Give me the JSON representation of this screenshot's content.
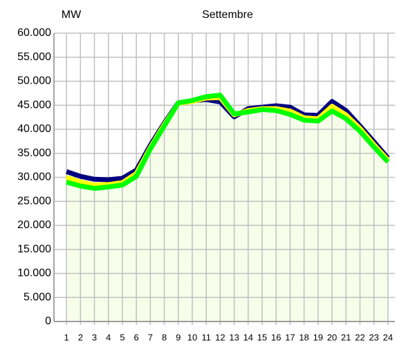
{
  "chart_data": {
    "type": "line",
    "title": "Settembre",
    "y_label": "MW",
    "categories": [
      "1",
      "2",
      "3",
      "4",
      "5",
      "6",
      "7",
      "8",
      "9",
      "10",
      "11",
      "12",
      "13",
      "14",
      "15",
      "16",
      "17",
      "18",
      "19",
      "20",
      "21",
      "22",
      "23",
      "24"
    ],
    "series": [
      {
        "color": "#000080",
        "values": [
          31200,
          30200,
          29600,
          29500,
          29800,
          31500,
          36700,
          41300,
          45500,
          45900,
          46200,
          45700,
          42600,
          44300,
          44600,
          44900,
          44600,
          43000,
          42900,
          45800,
          43900,
          40700,
          37400,
          34000
        ]
      },
      {
        "color": "#ffff00",
        "values": [
          30000,
          29000,
          28400,
          28500,
          28900,
          30800,
          36200,
          41000,
          45400,
          45800,
          46500,
          46600,
          43000,
          43900,
          44300,
          44300,
          43800,
          42400,
          42200,
          44800,
          43000,
          40200,
          36800,
          33600
        ]
      },
      {
        "color": "#00ff00",
        "values": [
          29000,
          28200,
          27700,
          28000,
          28400,
          30200,
          35900,
          40700,
          45500,
          46000,
          46800,
          47100,
          43200,
          43600,
          44100,
          43900,
          43100,
          41900,
          41700,
          43800,
          42200,
          39600,
          36300,
          33200
        ]
      }
    ],
    "area_color": "#f6feea",
    "ylim": [
      0,
      60000
    ],
    "yticks": [
      {
        "value": 0,
        "label": "0"
      },
      {
        "value": 5000,
        "label": "5.000"
      },
      {
        "value": 10000,
        "label": "10.000"
      },
      {
        "value": 15000,
        "label": "15.000"
      },
      {
        "value": 20000,
        "label": "20.000"
      },
      {
        "value": 25000,
        "label": "25.000"
      },
      {
        "value": 30000,
        "label": "30.000"
      },
      {
        "value": 35000,
        "label": "35.000"
      },
      {
        "value": 40000,
        "label": "40.000"
      },
      {
        "value": 45000,
        "label": "45.000"
      },
      {
        "value": 50000,
        "label": "50.000"
      },
      {
        "value": 55000,
        "label": "55.000"
      },
      {
        "value": 60000,
        "label": "60.000"
      }
    ],
    "grid": true
  }
}
